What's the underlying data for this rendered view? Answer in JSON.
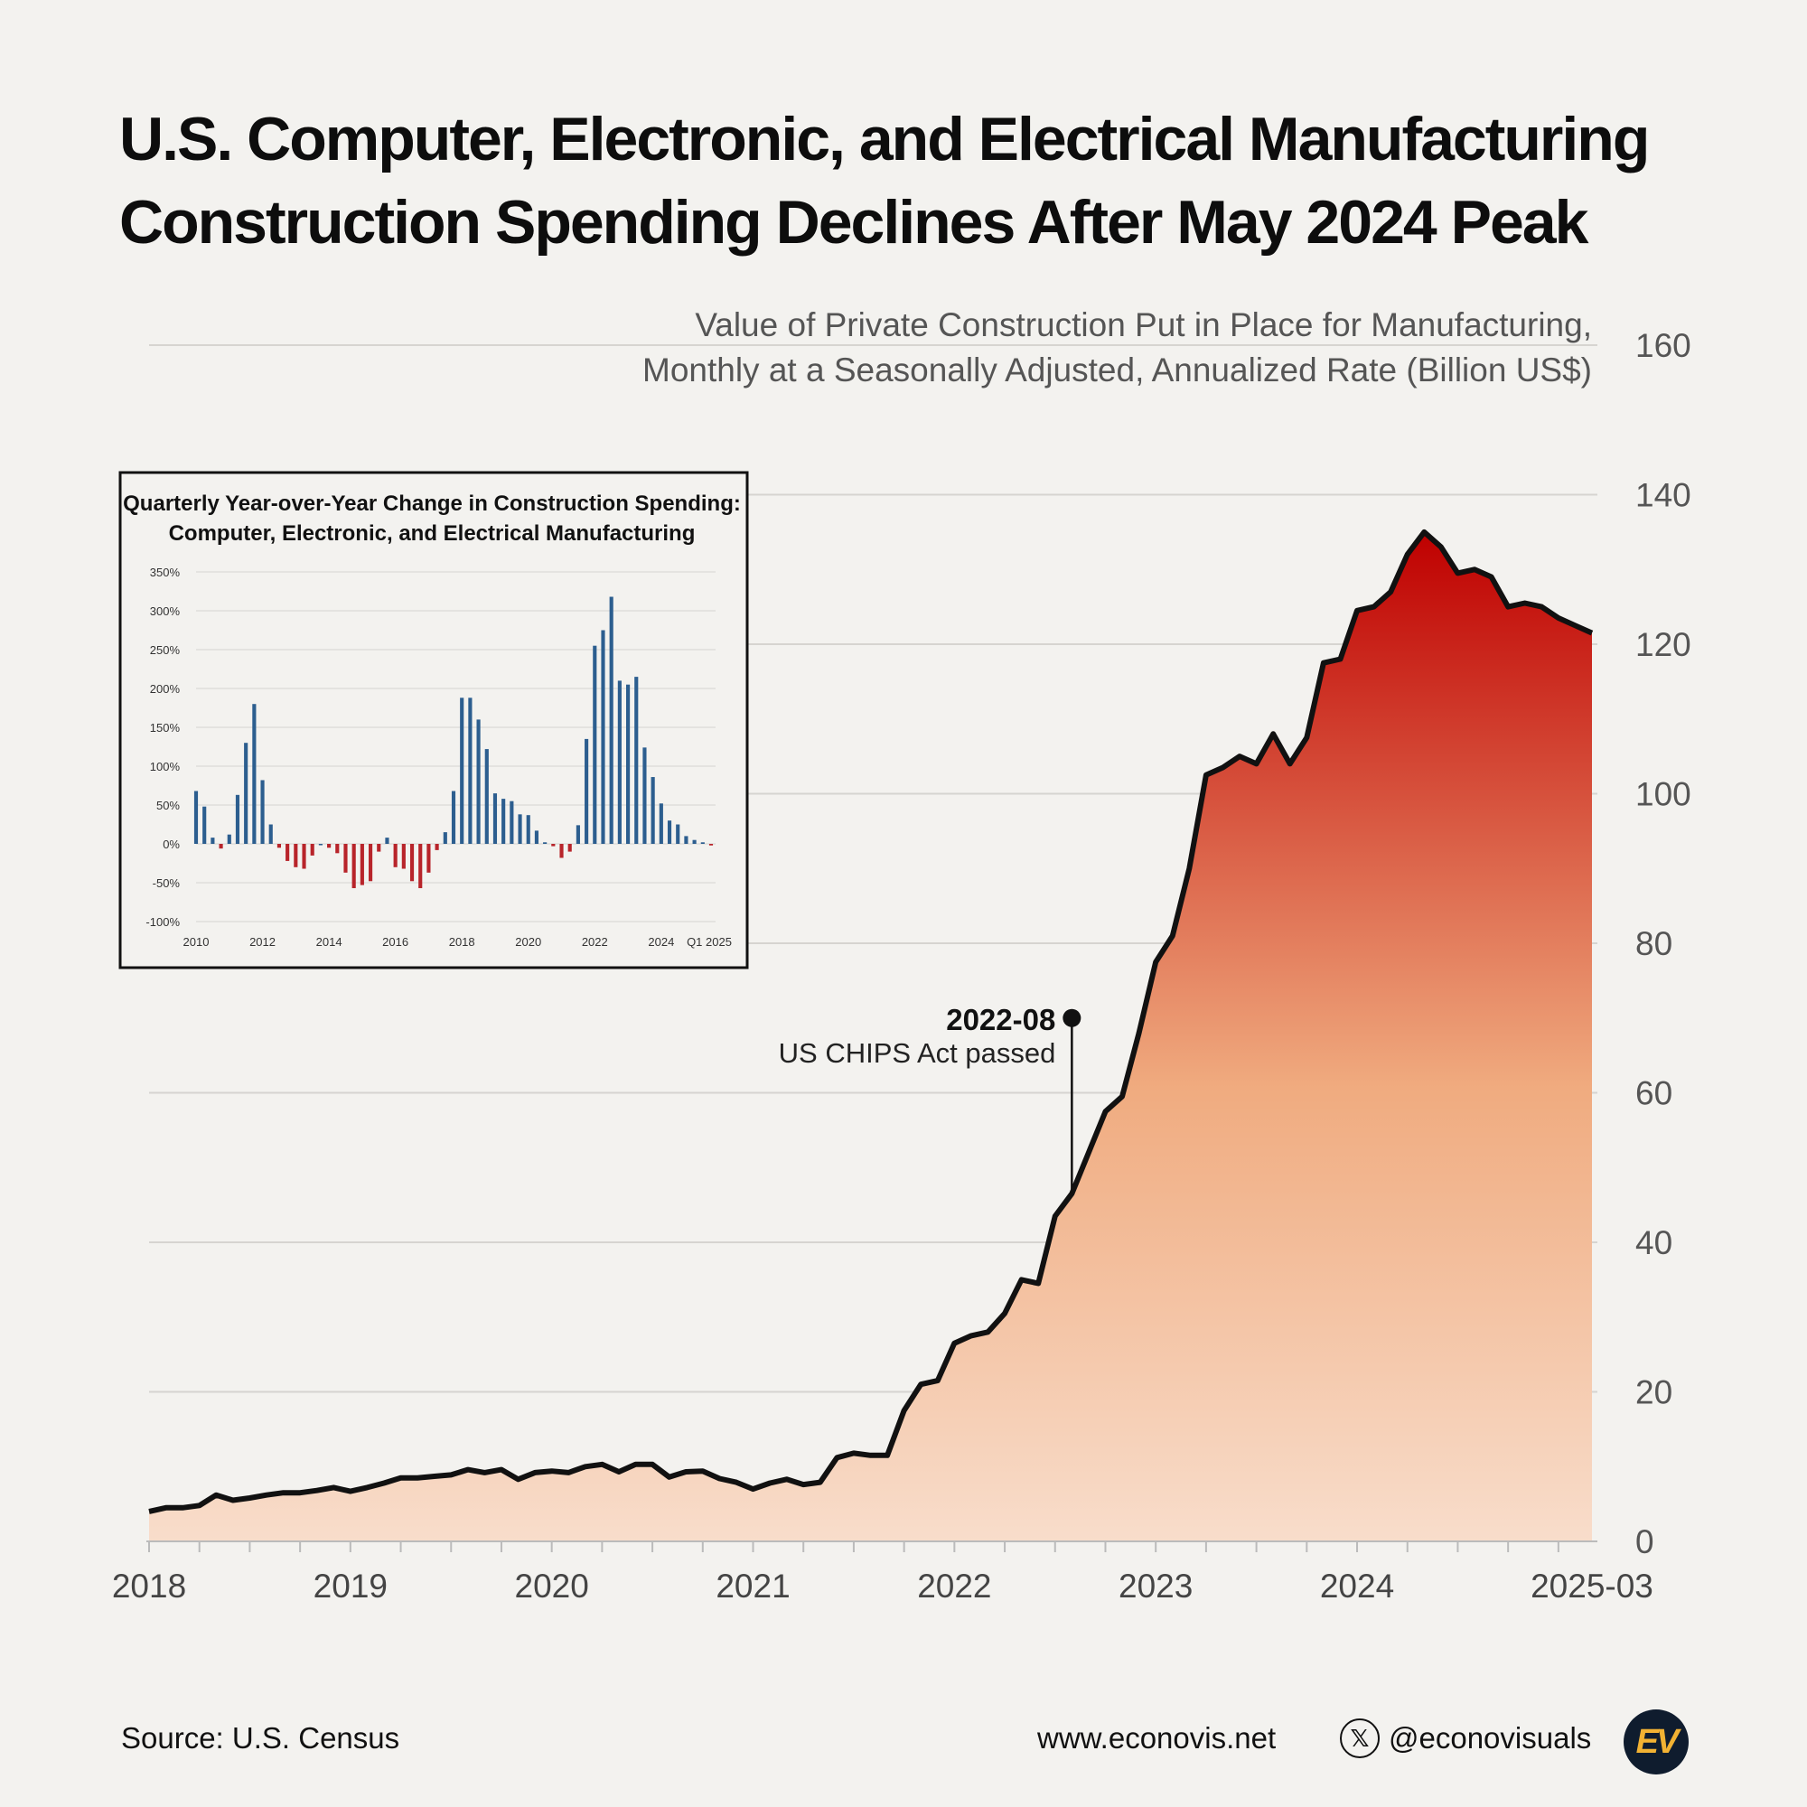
{
  "title": {
    "line1": "U.S. Computer, Electronic, and Electrical Manufacturing",
    "line2": "Construction Spending Declines After May 2024 Peak"
  },
  "chart_data": [
    {
      "type": "area",
      "title": "Value of Private Construction Put in Place for Manufacturing, Monthly at a Seasonally Adjusted, Annualized Rate (Billion US$)",
      "subtitle_line1": "Value of Private Construction Put in Place for Manufacturing,",
      "subtitle_line2": "Monthly at a Seasonally Adjusted, Annualized Rate (Billion US$)",
      "x_start": "2018-01",
      "x_end": "2025-03",
      "x_tick_labels": [
        "2018",
        "2019",
        "2020",
        "2021",
        "2022",
        "2023",
        "2024",
        "2025-03"
      ],
      "y_ticks": [
        0,
        20,
        40,
        60,
        80,
        100,
        120,
        140,
        160
      ],
      "ylim": [
        0,
        160
      ],
      "fill_colors": [
        "#bf0000",
        "#f0ab7f",
        "#f8ddcb"
      ],
      "line_color": "#111111",
      "values": [
        4.0,
        4.5,
        4.5,
        4.8,
        6.2,
        5.5,
        5.8,
        6.2,
        6.5,
        6.5,
        6.8,
        7.2,
        6.7,
        7.2,
        7.8,
        8.5,
        8.5,
        8.7,
        8.9,
        9.6,
        9.2,
        9.6,
        8.3,
        9.2,
        9.4,
        9.2,
        10.0,
        10.3,
        9.3,
        10.3,
        10.3,
        8.6,
        9.3,
        9.4,
        8.4,
        7.9,
        7.0,
        7.8,
        8.3,
        7.6,
        7.9,
        11.2,
        11.8,
        11.5,
        11.5,
        17.5,
        21.0,
        21.5,
        26.5,
        27.5,
        28.0,
        30.5,
        35.0,
        34.5,
        43.5,
        46.5,
        52.0,
        57.5,
        59.5,
        68.0,
        77.5,
        81.0,
        90.0,
        102.5,
        103.5,
        105.0,
        104.0,
        108.0,
        104.0,
        107.5,
        117.5,
        118.0,
        124.5,
        125.0,
        127.0,
        132.0,
        135.0,
        133.0,
        129.5,
        130.0,
        129.0,
        125.0,
        125.5,
        125.0,
        123.5,
        122.5,
        121.5
      ],
      "annotation": {
        "date": "2022-08",
        "value": 70.0,
        "label": "2022-08",
        "text": "US CHIPS Act passed"
      }
    },
    {
      "type": "bar",
      "title_line1": "Quarterly Year-over-Year Change in Construction Spending:",
      "title_line2": "Computer, Electronic, and Electrical Manufacturing",
      "ylim": [
        -100,
        350
      ],
      "y_ticks": [
        -100,
        -50,
        0,
        50,
        100,
        150,
        200,
        250,
        300,
        350
      ],
      "y_tick_labels": [
        "-100%",
        "-50%",
        "0%",
        "50%",
        "100%",
        "150%",
        "200%",
        "250%",
        "300%",
        "350%"
      ],
      "x_tick_labels": [
        "2010",
        "2012",
        "2014",
        "2016",
        "2018",
        "2020",
        "2022",
        "2024",
        "Q1 2025"
      ],
      "positive_color": "#2c5e8f",
      "negative_color": "#b8242a",
      "start_quarter": "2010-Q1",
      "values": [
        68,
        48,
        8,
        -6,
        12,
        63,
        130,
        180,
        82,
        25,
        -5,
        -22,
        -30,
        -32,
        -15,
        0,
        -5,
        -12,
        -37,
        -57,
        -53,
        -48,
        -10,
        8,
        -30,
        -32,
        -48,
        -57,
        -37,
        -8,
        15,
        68,
        188,
        188,
        160,
        122,
        65,
        58,
        55,
        38,
        37,
        17,
        2,
        -3,
        -18,
        -10,
        24,
        135,
        255,
        275,
        318,
        210,
        205,
        215,
        124,
        86,
        52,
        30,
        25,
        10,
        5,
        2,
        -2
      ]
    }
  ],
  "footer": {
    "source": "Source: U.S. Census",
    "website": "www.econovis.net",
    "x_glyph": "𝕏",
    "handle": "@econovisuals",
    "logo": "EV"
  }
}
